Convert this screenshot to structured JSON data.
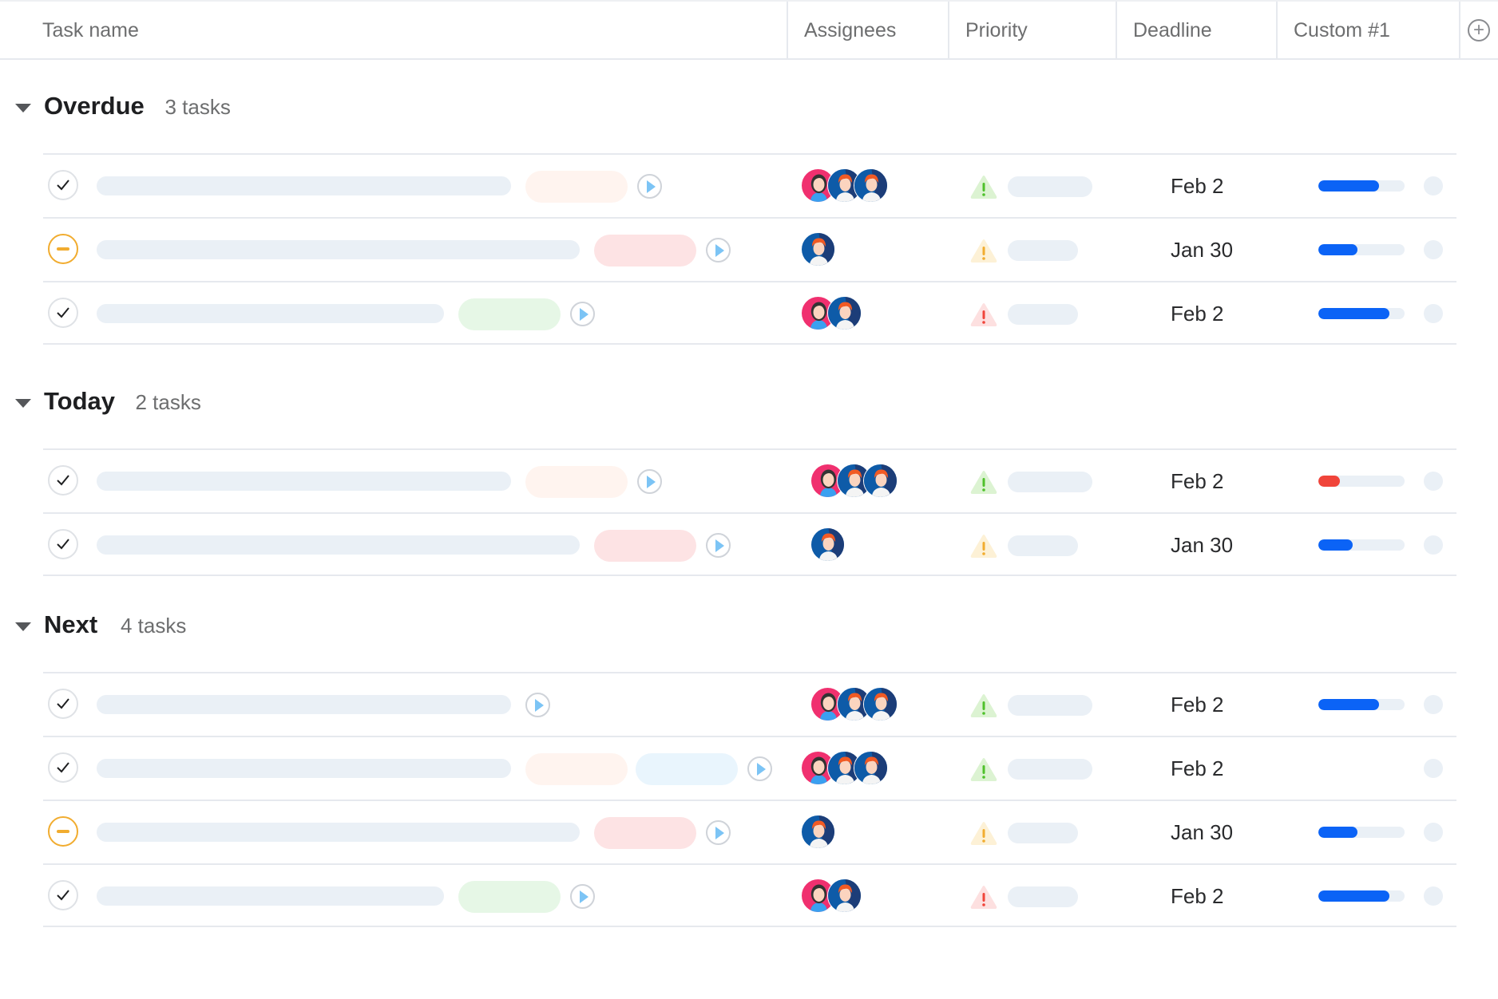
{
  "header": {
    "columns": [
      "Task name",
      "Assignees",
      "Priority",
      "Deadline",
      "Custom #1"
    ],
    "add_column_icon": "plus-circle-icon"
  },
  "colors": {
    "accent": "#0b63f6",
    "danger": "#f0443a",
    "pending": "#f1ac2f",
    "tag_peach": "#fff4ef",
    "tag_pink": "#fde3e4",
    "tag_green": "#e6f7e6",
    "tag_blue": "#e9f5fd"
  },
  "groups": [
    {
      "title": "Overdue",
      "count": "3 tasks",
      "rows": [
        {
          "status": "done",
          "bar": "medium",
          "tags": [
            "peach"
          ],
          "assignees": [
            "woman",
            "man",
            "man"
          ],
          "priority": "low",
          "prio_pill": "long",
          "deadline": "Feb 2",
          "progress": 0.7,
          "progress_color": "accent"
        },
        {
          "status": "pending",
          "bar": "long",
          "tags": [
            "pink"
          ],
          "assignees": [
            "man"
          ],
          "priority": "medium",
          "prio_pill": "short",
          "deadline": "Jan 30",
          "progress": 0.45,
          "progress_color": "accent"
        },
        {
          "status": "done",
          "bar": "short",
          "tags": [
            "green"
          ],
          "assignees": [
            "woman",
            "man"
          ],
          "priority": "high",
          "prio_pill": "short",
          "deadline": "Feb 2",
          "progress": 0.82,
          "progress_color": "accent"
        }
      ]
    },
    {
      "title": "Today",
      "count": "2 tasks",
      "rows": [
        {
          "status": "done",
          "bar": "medium",
          "tags": [
            "peach"
          ],
          "assignees": [
            "woman",
            "man",
            "man"
          ],
          "indent": true,
          "priority": "low",
          "prio_pill": "long",
          "deadline": "Feb 2",
          "progress": 0.25,
          "progress_color": "danger"
        },
        {
          "status": "done",
          "bar": "long",
          "tags": [
            "pink"
          ],
          "assignees": [
            "man"
          ],
          "indent": true,
          "priority": "medium",
          "prio_pill": "short",
          "deadline": "Jan 30",
          "progress": 0.4,
          "progress_color": "accent"
        }
      ]
    },
    {
      "title": "Next",
      "count": "4 tasks",
      "rows": [
        {
          "status": "done",
          "bar": "medium",
          "tags": [],
          "assignees": [
            "woman",
            "man",
            "man"
          ],
          "indent": true,
          "priority": "low",
          "prio_pill": "long",
          "deadline": "Feb 2",
          "progress": 0.7,
          "progress_color": "accent"
        },
        {
          "status": "done",
          "bar": "medium",
          "tags": [
            "peach",
            "blue"
          ],
          "assignees": [
            "woman",
            "man",
            "man"
          ],
          "priority": "low",
          "prio_pill": "long",
          "deadline": "Feb 2",
          "progress": null,
          "progress_color": "accent"
        },
        {
          "status": "pending",
          "bar": "long",
          "tags": [
            "pink"
          ],
          "assignees": [
            "man"
          ],
          "priority": "medium",
          "prio_pill": "short",
          "deadline": "Jan 30",
          "progress": 0.45,
          "progress_color": "accent"
        },
        {
          "status": "done",
          "bar": "short",
          "tags": [
            "green"
          ],
          "assignees": [
            "woman",
            "man"
          ],
          "priority": "high",
          "prio_pill": "short",
          "deadline": "Feb 2",
          "progress": 0.82,
          "progress_color": "accent"
        }
      ]
    }
  ]
}
